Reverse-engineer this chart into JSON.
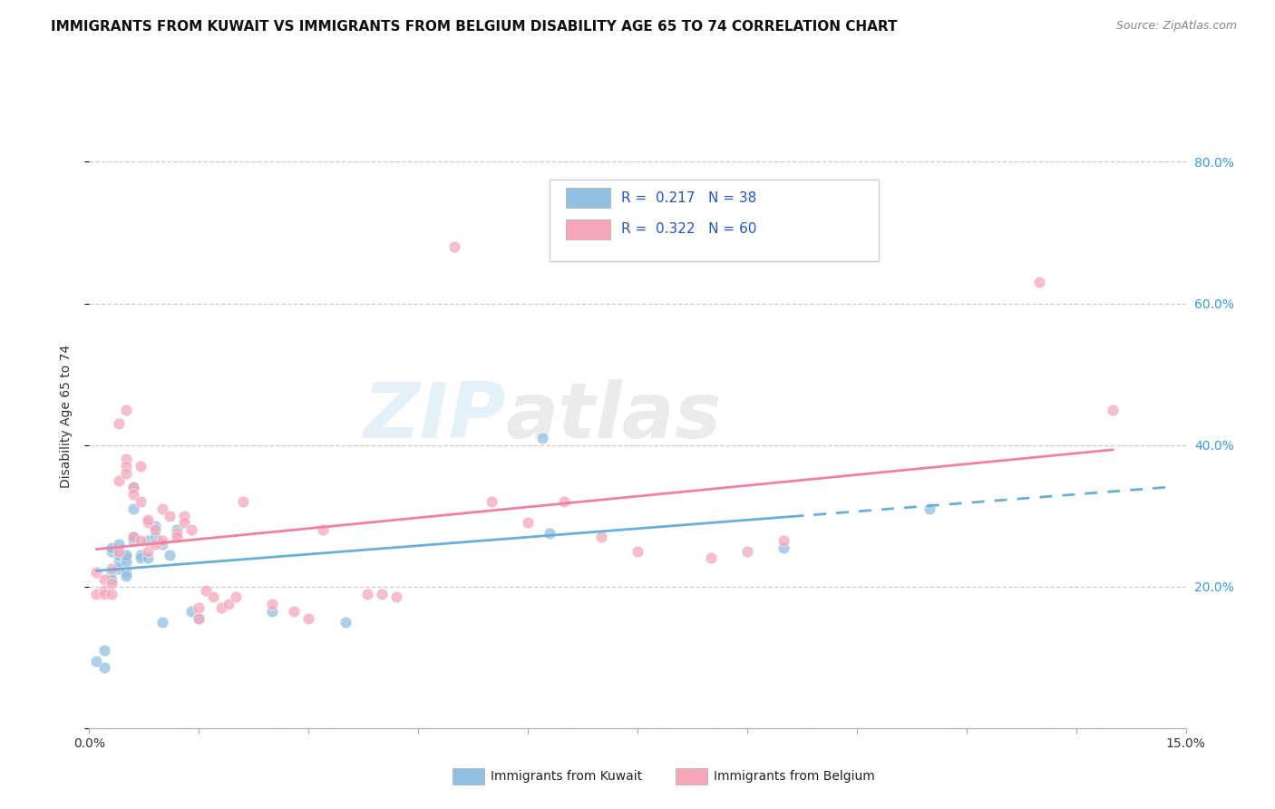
{
  "title": "IMMIGRANTS FROM KUWAIT VS IMMIGRANTS FROM BELGIUM DISABILITY AGE 65 TO 74 CORRELATION CHART",
  "source": "Source: ZipAtlas.com",
  "ylabel": "Disability Age 65 to 74",
  "xlim": [
    0.0,
    0.15
  ],
  "ylim": [
    0.0,
    0.88
  ],
  "xtick_positions": [
    0.0,
    0.015,
    0.03,
    0.045,
    0.06,
    0.075,
    0.09,
    0.105,
    0.12,
    0.135,
    0.15
  ],
  "xtick_labels": [
    "0.0%",
    "",
    "",
    "",
    "",
    "",
    "",
    "",
    "",
    "",
    "15.0%"
  ],
  "ytick_positions": [
    0.0,
    0.2,
    0.4,
    0.6,
    0.8
  ],
  "ytick_labels": [
    "",
    "20.0%",
    "40.0%",
    "60.0%",
    "80.0%"
  ],
  "kuwait_color": "#92c0e0",
  "belgium_color": "#f4a7bb",
  "kuwait_line_color": "#6aafd8",
  "belgium_line_color": "#f080a0",
  "axis_tick_color": "#3399ee",
  "kuwait_R": 0.217,
  "kuwait_N": 38,
  "belgium_R": 0.322,
  "belgium_N": 60,
  "legend_text_color": "#2255cc",
  "grid_color": "#cccccc",
  "kuwait_x": [
    0.001,
    0.002,
    0.002,
    0.003,
    0.003,
    0.003,
    0.003,
    0.004,
    0.004,
    0.004,
    0.004,
    0.005,
    0.005,
    0.005,
    0.005,
    0.005,
    0.006,
    0.006,
    0.006,
    0.006,
    0.007,
    0.007,
    0.008,
    0.008,
    0.009,
    0.009,
    0.01,
    0.01,
    0.011,
    0.012,
    0.014,
    0.015,
    0.025,
    0.035,
    0.062,
    0.063,
    0.095,
    0.115
  ],
  "kuwait_y": [
    0.095,
    0.085,
    0.11,
    0.25,
    0.255,
    0.22,
    0.21,
    0.225,
    0.235,
    0.245,
    0.26,
    0.24,
    0.235,
    0.245,
    0.22,
    0.215,
    0.265,
    0.27,
    0.31,
    0.34,
    0.245,
    0.24,
    0.24,
    0.265,
    0.27,
    0.285,
    0.26,
    0.15,
    0.245,
    0.28,
    0.165,
    0.155,
    0.165,
    0.15,
    0.41,
    0.275,
    0.255,
    0.31
  ],
  "belgium_x": [
    0.001,
    0.001,
    0.002,
    0.002,
    0.002,
    0.003,
    0.003,
    0.003,
    0.004,
    0.004,
    0.004,
    0.005,
    0.005,
    0.005,
    0.005,
    0.006,
    0.006,
    0.006,
    0.007,
    0.007,
    0.007,
    0.008,
    0.008,
    0.008,
    0.009,
    0.009,
    0.01,
    0.01,
    0.011,
    0.012,
    0.012,
    0.013,
    0.013,
    0.014,
    0.015,
    0.015,
    0.016,
    0.017,
    0.018,
    0.019,
    0.02,
    0.021,
    0.025,
    0.028,
    0.03,
    0.032,
    0.038,
    0.04,
    0.042,
    0.05,
    0.055,
    0.06,
    0.065,
    0.07,
    0.075,
    0.085,
    0.09,
    0.095,
    0.13,
    0.14
  ],
  "belgium_y": [
    0.22,
    0.19,
    0.21,
    0.195,
    0.19,
    0.225,
    0.205,
    0.19,
    0.43,
    0.35,
    0.25,
    0.45,
    0.38,
    0.37,
    0.36,
    0.34,
    0.33,
    0.27,
    0.37,
    0.32,
    0.265,
    0.29,
    0.295,
    0.25,
    0.28,
    0.26,
    0.31,
    0.265,
    0.3,
    0.275,
    0.27,
    0.3,
    0.29,
    0.28,
    0.17,
    0.155,
    0.195,
    0.185,
    0.17,
    0.175,
    0.185,
    0.32,
    0.175,
    0.165,
    0.155,
    0.28,
    0.19,
    0.19,
    0.185,
    0.68,
    0.32,
    0.29,
    0.32,
    0.27,
    0.25,
    0.24,
    0.25,
    0.265,
    0.63,
    0.45
  ]
}
